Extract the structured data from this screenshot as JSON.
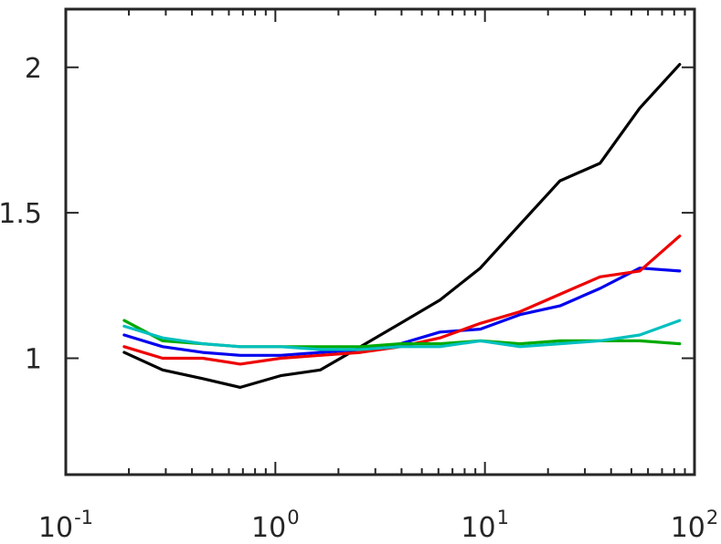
{
  "chart_data": {
    "type": "line",
    "title": "",
    "xlabel": "",
    "ylabel": "",
    "xscale": "log",
    "xlim": [
      0.1,
      100
    ],
    "ylim": [
      0.6,
      2.2
    ],
    "grid": false,
    "box": true,
    "x_ticks": [
      {
        "value": 0.1,
        "base": "10",
        "exp": "-1"
      },
      {
        "value": 1,
        "base": "10",
        "exp": "0"
      },
      {
        "value": 10,
        "base": "10",
        "exp": "1"
      },
      {
        "value": 100,
        "base": "10",
        "exp": "2"
      }
    ],
    "y_ticks": [
      {
        "value": 1,
        "label": "1"
      },
      {
        "value": 1.5,
        "label": "1.5"
      },
      {
        "value": 2,
        "label": "2"
      }
    ],
    "series": [
      {
        "color": "#000000",
        "x": [
          0.19,
          0.29,
          0.45,
          0.68,
          1.06,
          1.64,
          2.55,
          3.95,
          6.1,
          9.5,
          14.7,
          22.8,
          35.4,
          54.8,
          85
        ],
        "y": [
          1.02,
          0.96,
          0.93,
          0.9,
          0.94,
          0.96,
          1.04,
          1.12,
          1.2,
          1.31,
          1.46,
          1.61,
          1.67,
          1.86,
          2.01
        ]
      },
      {
        "color": "#0000ee",
        "x": [
          0.19,
          0.29,
          0.45,
          0.68,
          1.06,
          1.64,
          2.55,
          3.95,
          6.1,
          9.5,
          14.7,
          22.8,
          35.4,
          54.8,
          85
        ],
        "y": [
          1.08,
          1.04,
          1.02,
          1.01,
          1.01,
          1.02,
          1.03,
          1.05,
          1.09,
          1.1,
          1.15,
          1.18,
          1.24,
          1.31,
          1.3
        ]
      },
      {
        "color": "#ee0000",
        "x": [
          0.19,
          0.29,
          0.45,
          0.68,
          1.06,
          1.64,
          2.55,
          3.95,
          6.1,
          9.5,
          14.7,
          22.8,
          35.4,
          54.8,
          85
        ],
        "y": [
          1.04,
          1.0,
          1.0,
          0.98,
          1.0,
          1.01,
          1.02,
          1.04,
          1.07,
          1.12,
          1.16,
          1.22,
          1.28,
          1.3,
          1.42
        ]
      },
      {
        "color": "#00aa00",
        "x": [
          0.19,
          0.29,
          0.45,
          0.68,
          1.06,
          1.64,
          2.55,
          3.95,
          6.1,
          9.5,
          14.7,
          22.8,
          35.4,
          54.8,
          85
        ],
        "y": [
          1.13,
          1.06,
          1.05,
          1.04,
          1.04,
          1.04,
          1.04,
          1.05,
          1.05,
          1.06,
          1.05,
          1.06,
          1.06,
          1.06,
          1.05
        ]
      },
      {
        "color": "#00bfbf",
        "x": [
          0.19,
          0.29,
          0.45,
          0.68,
          1.06,
          1.64,
          2.55,
          3.95,
          6.1,
          9.5,
          14.7,
          22.8,
          35.4,
          54.8,
          85
        ],
        "y": [
          1.11,
          1.07,
          1.05,
          1.04,
          1.04,
          1.03,
          1.03,
          1.04,
          1.04,
          1.06,
          1.04,
          1.05,
          1.06,
          1.08,
          1.13
        ]
      }
    ]
  }
}
